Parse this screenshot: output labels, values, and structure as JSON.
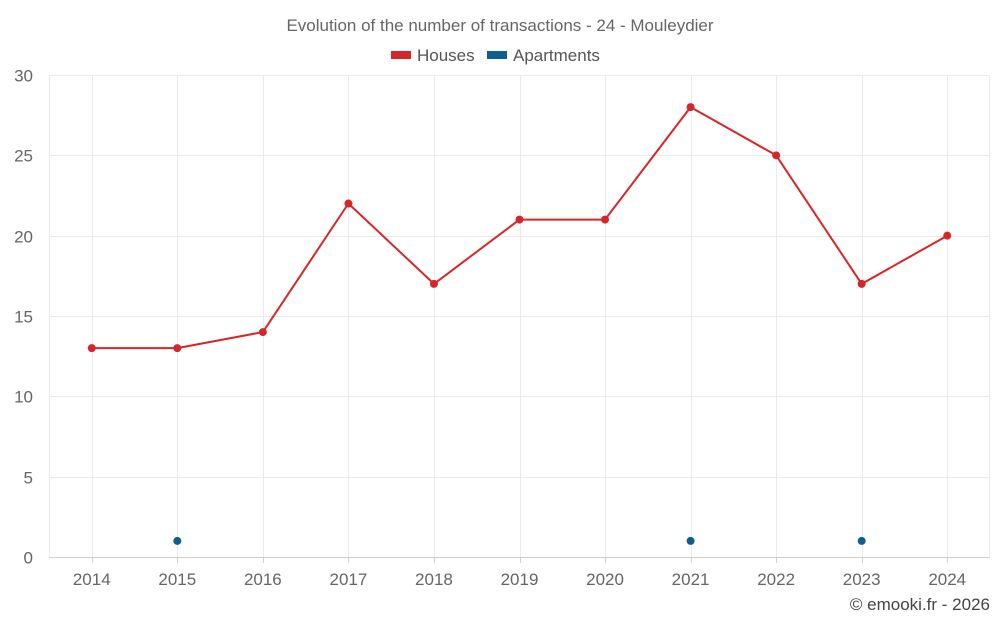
{
  "chart_data": {
    "type": "line",
    "title": "Evolution of the number of transactions - 24 - Mouleydier",
    "categories": [
      "2014",
      "2015",
      "2016",
      "2017",
      "2018",
      "2019",
      "2020",
      "2021",
      "2022",
      "2023",
      "2024"
    ],
    "series": [
      {
        "name": "Houses",
        "color": "#d62728",
        "values": [
          13,
          13,
          14,
          22,
          17,
          21,
          21,
          28,
          25,
          17,
          20
        ],
        "style": "line"
      },
      {
        "name": "Apartments",
        "color": "#0b5f91",
        "values": [
          null,
          1,
          null,
          null,
          null,
          null,
          null,
          1,
          null,
          1,
          null
        ],
        "style": "points"
      }
    ],
    "ylim": [
      0,
      30
    ],
    "yticks": [
      0,
      5,
      10,
      15,
      20,
      25,
      30
    ],
    "grid": true,
    "legend": "top-center"
  },
  "credit": "© emooki.fr - 2026"
}
